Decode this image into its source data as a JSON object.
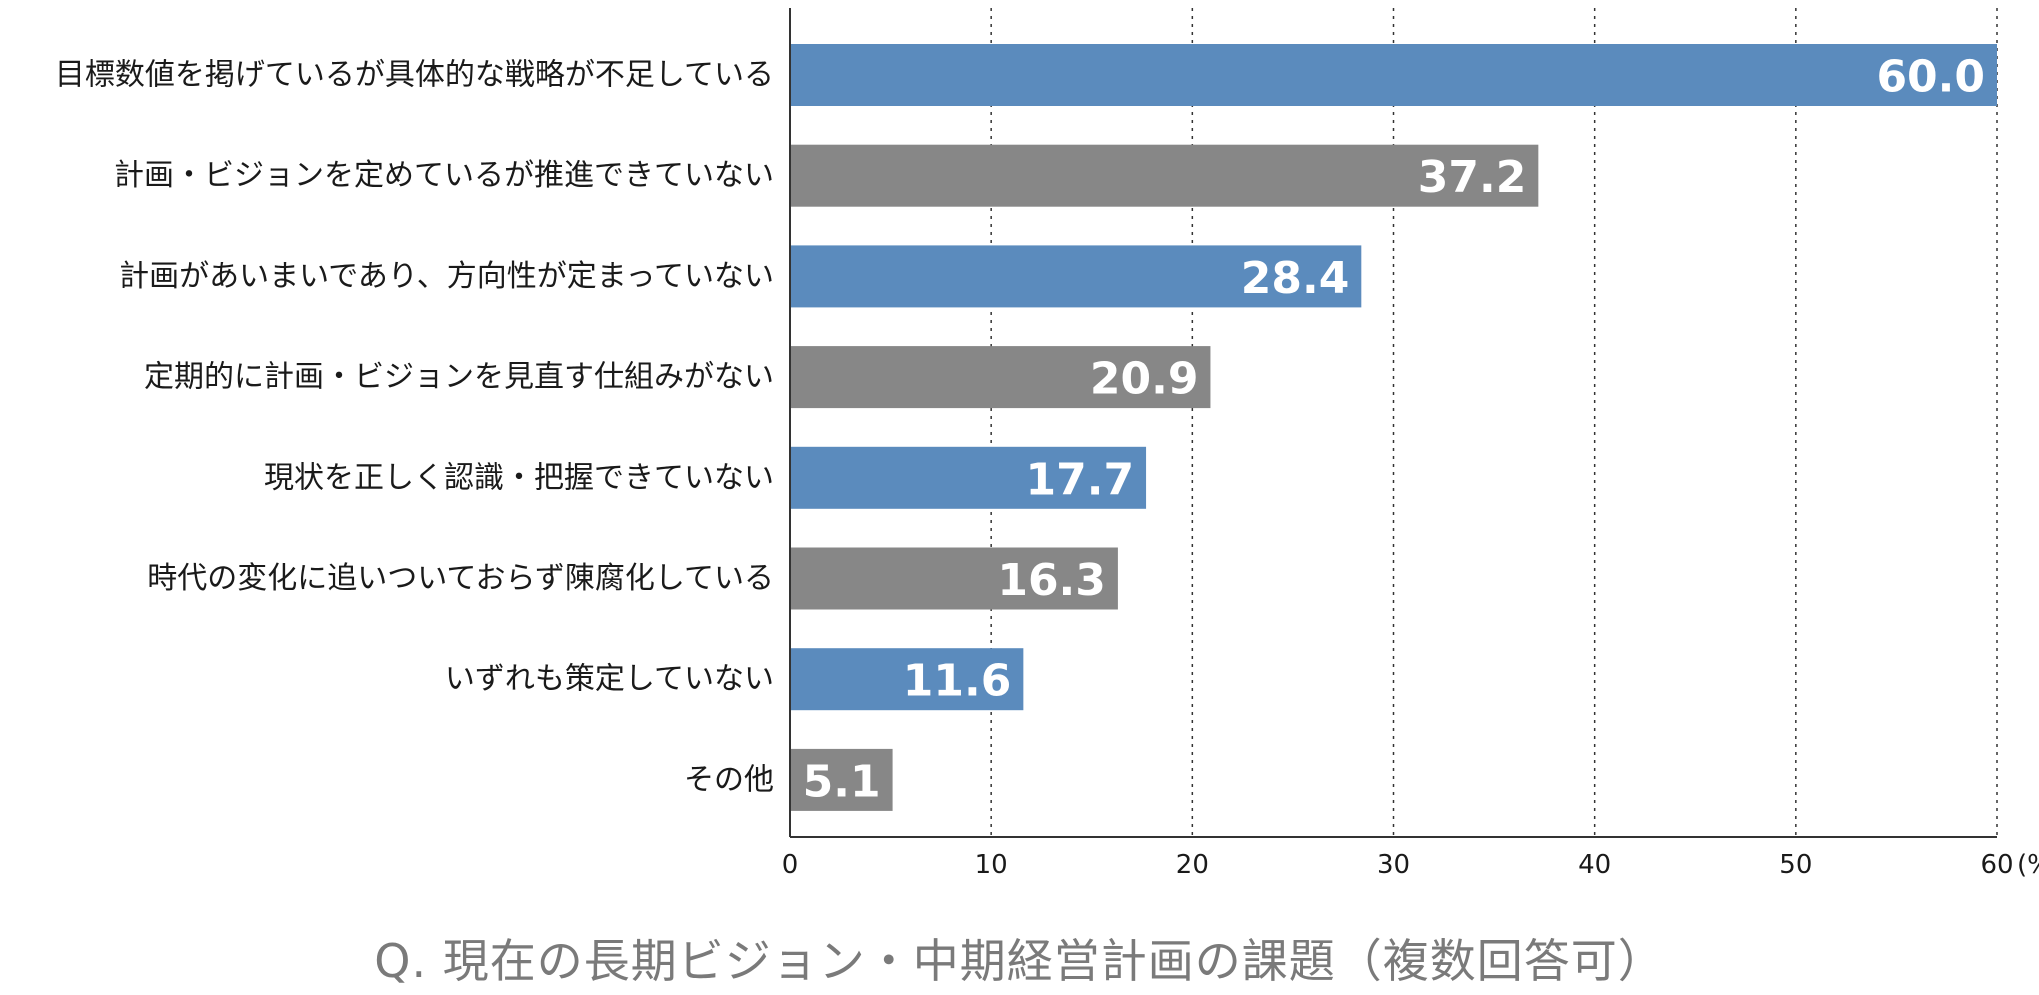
{
  "caption": "Q. 現在の長期ビジョン・中期経営計画の課題（複数回答可）",
  "chart_data": {
    "type": "bar",
    "orientation": "horizontal",
    "title": "Q. 現在の長期ビジョン・中期経営計画の課題（複数回答可）",
    "categories": [
      "目標数値を掲げているが具体的な戦略が不足している",
      "計画・ビジョンを定めているが推進できていない",
      "計画があいまいであり、方向性が定まっていない",
      "定期的に計画・ビジョンを見直す仕組みがない",
      "現状を正しく認識・把握できていない",
      "時代の変化に追いついておらず陳腐化している",
      "いずれも策定していない",
      "その他"
    ],
    "values": [
      60.0,
      37.2,
      28.4,
      20.9,
      17.7,
      16.3,
      11.6,
      5.1
    ],
    "value_labels": [
      "60.0",
      "37.2",
      "28.4",
      "20.9",
      "17.7",
      "16.3",
      "11.6",
      "5.1"
    ],
    "bar_colors": [
      "#5b8bbd",
      "#878787",
      "#5b8bbd",
      "#878787",
      "#5b8bbd",
      "#878787",
      "#5b8bbd",
      "#878787"
    ],
    "xlim": [
      0,
      60
    ],
    "xticks": [
      0,
      10,
      20,
      30,
      40,
      50,
      60
    ],
    "xtick_labels": [
      "0",
      "10",
      "20",
      "30",
      "40",
      "50",
      "60"
    ],
    "unit_label": "(%)",
    "grid": "vertical dotted",
    "xlabel": "",
    "ylabel": ""
  }
}
